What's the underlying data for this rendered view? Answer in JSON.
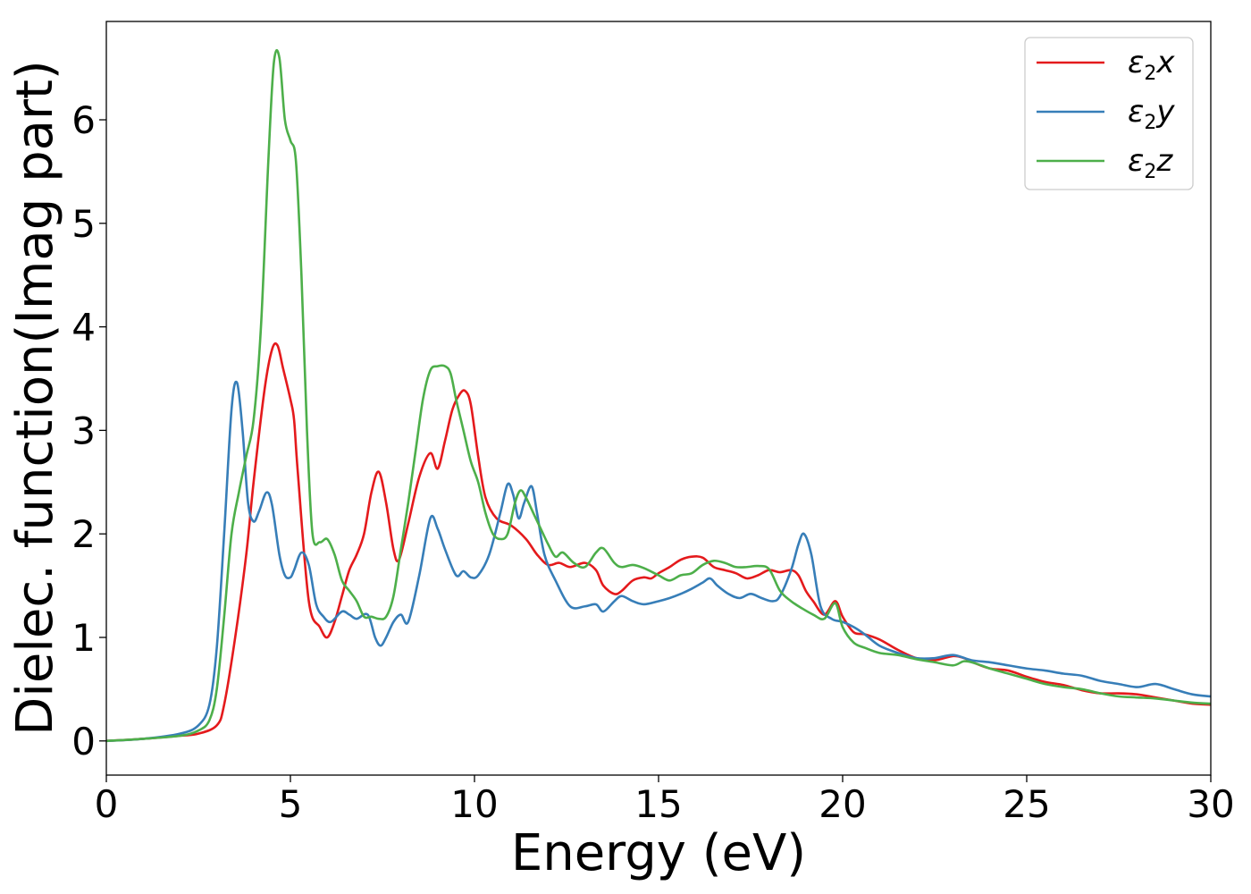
{
  "chart_data": {
    "type": "line",
    "title": "",
    "xlabel": "Energy (eV)",
    "ylabel": "Dielec. function(Imag part)",
    "xlim": [
      0,
      30
    ],
    "ylim": [
      -0.33,
      6.95
    ],
    "xticks": [
      0,
      5,
      10,
      15,
      20,
      25,
      30
    ],
    "xtick_labels": [
      "0",
      "5",
      "10",
      "15",
      "20",
      "25",
      "30"
    ],
    "yticks": [
      0,
      1,
      2,
      3,
      4,
      5,
      6
    ],
    "ytick_labels": [
      "0",
      "1",
      "2",
      "3",
      "4",
      "5",
      "6"
    ],
    "grid": false,
    "legend_position": "top-right",
    "series": [
      {
        "name": "ε₂x",
        "legend_base": "ε",
        "legend_sub": "2",
        "legend_suffix": "x",
        "color": "#e41a1c",
        "x": [
          0,
          1,
          2,
          2.5,
          3,
          3.2,
          3.5,
          3.8,
          4,
          4.3,
          4.5,
          4.65,
          4.8,
          5,
          5.1,
          5.2,
          5.5,
          5.8,
          6,
          6.2,
          6.4,
          6.6,
          6.8,
          7,
          7.2,
          7.4,
          7.6,
          7.8,
          7.95,
          8.2,
          8.5,
          8.8,
          9,
          9.2,
          9.4,
          9.6,
          9.75,
          9.9,
          10.1,
          10.3,
          10.6,
          11,
          11.4,
          11.7,
          12,
          12.3,
          12.6,
          13,
          13.3,
          13.5,
          13.8,
          14,
          14.3,
          14.6,
          14.8,
          15,
          15.3,
          15.6,
          15.9,
          16.2,
          16.5,
          16.8,
          17.1,
          17.4,
          17.7,
          18,
          18.3,
          18.6,
          18.8,
          19,
          19.2,
          19.5,
          19.8,
          20,
          20.3,
          20.6,
          21,
          21.5,
          22,
          22.5,
          23,
          23.3,
          23.6,
          24,
          24.5,
          25,
          25.5,
          26,
          26.5,
          27,
          27.5,
          28,
          28.5,
          29,
          29.5,
          30
        ],
        "y": [
          0,
          0.02,
          0.05,
          0.07,
          0.15,
          0.35,
          1.0,
          1.8,
          2.5,
          3.4,
          3.78,
          3.82,
          3.6,
          3.3,
          3.1,
          2.6,
          1.35,
          1.1,
          1.0,
          1.15,
          1.4,
          1.65,
          1.8,
          2.0,
          2.4,
          2.6,
          2.3,
          1.85,
          1.75,
          2.1,
          2.55,
          2.78,
          2.63,
          2.9,
          3.2,
          3.35,
          3.38,
          3.25,
          2.75,
          2.35,
          2.15,
          2.08,
          1.95,
          1.8,
          1.7,
          1.72,
          1.68,
          1.72,
          1.65,
          1.5,
          1.42,
          1.45,
          1.55,
          1.58,
          1.57,
          1.62,
          1.68,
          1.75,
          1.78,
          1.77,
          1.68,
          1.65,
          1.62,
          1.57,
          1.6,
          1.65,
          1.63,
          1.65,
          1.6,
          1.45,
          1.35,
          1.22,
          1.35,
          1.2,
          1.05,
          1.03,
          0.98,
          0.88,
          0.8,
          0.78,
          0.82,
          0.8,
          0.75,
          0.7,
          0.68,
          0.62,
          0.57,
          0.54,
          0.49,
          0.46,
          0.46,
          0.45,
          0.42,
          0.39,
          0.36,
          0.35
        ]
      },
      {
        "name": "ε₂y",
        "legend_base": "ε",
        "legend_sub": "2",
        "legend_suffix": "y",
        "color": "#377eb8",
        "x": [
          0,
          1,
          2,
          2.5,
          2.8,
          3.0,
          3.2,
          3.4,
          3.55,
          3.7,
          3.85,
          4.0,
          4.15,
          4.35,
          4.5,
          4.7,
          4.85,
          5.0,
          5.1,
          5.3,
          5.5,
          5.7,
          5.9,
          6.1,
          6.4,
          6.6,
          6.8,
          7.1,
          7.3,
          7.45,
          7.6,
          7.8,
          8.0,
          8.2,
          8.5,
          8.8,
          9.0,
          9.2,
          9.5,
          9.7,
          9.9,
          10.1,
          10.4,
          10.7,
          10.9,
          11.05,
          11.2,
          11.35,
          11.55,
          11.7,
          11.9,
          12.2,
          12.6,
          13,
          13.3,
          13.5,
          13.8,
          14,
          14.3,
          14.6,
          15,
          15.3,
          15.6,
          15.9,
          16.2,
          16.4,
          16.6,
          16.9,
          17.2,
          17.5,
          17.8,
          18.1,
          18.3,
          18.6,
          18.8,
          18.95,
          19.15,
          19.4,
          19.7,
          20,
          20.3,
          20.6,
          21,
          21.5,
          22,
          22.5,
          23,
          23.5,
          24,
          24.5,
          25,
          25.5,
          26,
          26.5,
          27,
          27.5,
          28,
          28.5,
          29,
          29.5,
          30
        ],
        "y": [
          0,
          0.02,
          0.07,
          0.15,
          0.35,
          0.9,
          2.0,
          3.2,
          3.46,
          3.0,
          2.3,
          2.12,
          2.22,
          2.4,
          2.28,
          1.8,
          1.6,
          1.58,
          1.65,
          1.82,
          1.7,
          1.32,
          1.2,
          1.15,
          1.25,
          1.22,
          1.18,
          1.22,
          1.0,
          0.92,
          1.0,
          1.15,
          1.22,
          1.15,
          1.6,
          2.15,
          2.05,
          1.85,
          1.6,
          1.64,
          1.58,
          1.6,
          1.8,
          2.2,
          2.48,
          2.38,
          2.15,
          2.3,
          2.46,
          2.2,
          1.8,
          1.55,
          1.3,
          1.3,
          1.32,
          1.25,
          1.35,
          1.4,
          1.35,
          1.32,
          1.35,
          1.38,
          1.42,
          1.47,
          1.53,
          1.57,
          1.5,
          1.42,
          1.38,
          1.42,
          1.38,
          1.35,
          1.4,
          1.65,
          1.9,
          2.0,
          1.8,
          1.3,
          1.18,
          1.15,
          1.1,
          1.03,
          0.92,
          0.85,
          0.8,
          0.8,
          0.83,
          0.78,
          0.76,
          0.73,
          0.7,
          0.68,
          0.65,
          0.63,
          0.58,
          0.55,
          0.52,
          0.55,
          0.5,
          0.45,
          0.43
        ]
      },
      {
        "name": "ε₂z",
        "legend_base": "ε",
        "legend_sub": "2",
        "legend_suffix": "z",
        "color": "#4daf4a",
        "x": [
          0,
          1,
          2,
          2.5,
          2.8,
          3.0,
          3.2,
          3.4,
          3.6,
          3.8,
          4.0,
          4.2,
          4.4,
          4.55,
          4.7,
          4.85,
          5.0,
          5.15,
          5.3,
          5.45,
          5.6,
          5.8,
          6.0,
          6.2,
          6.4,
          6.6,
          6.8,
          7.0,
          7.2,
          7.4,
          7.6,
          7.8,
          8.0,
          8.2,
          8.4,
          8.6,
          8.8,
          9.0,
          9.2,
          9.35,
          9.5,
          9.7,
          9.9,
          10.1,
          10.3,
          10.5,
          10.7,
          10.9,
          11.1,
          11.25,
          11.4,
          11.6,
          11.8,
          12.0,
          12.2,
          12.4,
          12.7,
          13.0,
          13.3,
          13.5,
          13.8,
          14.0,
          14.3,
          14.6,
          15.0,
          15.3,
          15.6,
          15.9,
          16.2,
          16.5,
          16.8,
          17.1,
          17.4,
          17.7,
          18.0,
          18.3,
          18.6,
          18.9,
          19.2,
          19.5,
          19.8,
          20.0,
          20.3,
          20.6,
          21,
          21.5,
          22,
          22.5,
          23,
          23.3,
          23.6,
          24,
          24.5,
          25,
          25.5,
          26,
          26.5,
          27,
          27.5,
          28,
          28.5,
          29,
          29.5,
          30
        ],
        "y": [
          0,
          0.02,
          0.05,
          0.1,
          0.2,
          0.5,
          1.2,
          2.0,
          2.4,
          2.75,
          3.1,
          4.0,
          5.6,
          6.55,
          6.6,
          6.0,
          5.8,
          5.6,
          4.5,
          3.0,
          2.0,
          1.92,
          1.95,
          1.8,
          1.55,
          1.45,
          1.35,
          1.2,
          1.2,
          1.18,
          1.2,
          1.4,
          1.85,
          2.3,
          2.8,
          3.3,
          3.58,
          3.62,
          3.62,
          3.55,
          3.3,
          3.0,
          2.7,
          2.5,
          2.2,
          2.0,
          1.95,
          2.0,
          2.3,
          2.42,
          2.35,
          2.2,
          2.05,
          1.9,
          1.78,
          1.82,
          1.72,
          1.68,
          1.82,
          1.86,
          1.72,
          1.68,
          1.7,
          1.67,
          1.6,
          1.55,
          1.6,
          1.62,
          1.7,
          1.74,
          1.72,
          1.68,
          1.68,
          1.69,
          1.66,
          1.45,
          1.35,
          1.28,
          1.22,
          1.18,
          1.33,
          1.1,
          0.95,
          0.9,
          0.85,
          0.83,
          0.79,
          0.76,
          0.73,
          0.77,
          0.75,
          0.7,
          0.65,
          0.6,
          0.55,
          0.52,
          0.5,
          0.46,
          0.43,
          0.42,
          0.41,
          0.39,
          0.37,
          0.36
        ]
      }
    ]
  }
}
